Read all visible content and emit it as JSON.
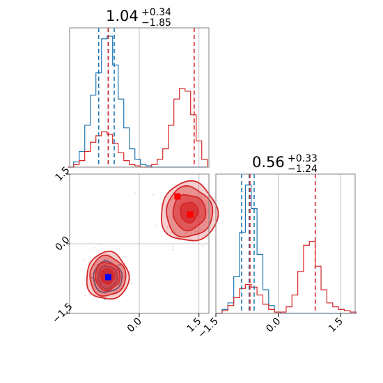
{
  "colors": {
    "blue": "#1f77b4",
    "red": "#d62728",
    "grid": "#b0b0b0",
    "axes": "#808080",
    "blue_marker": "#0000ff",
    "red_marker": "#ff0000"
  },
  "chart_data": [
    {
      "type": "histogram",
      "panel": "marginal-param-1",
      "title": {
        "value": "1.04",
        "upper": "+0.34",
        "lower": "−1.85"
      },
      "xlim": [
        -1.75,
        1.75
      ],
      "x": [
        -1.72,
        -1.58,
        -1.44,
        -1.3,
        -1.16,
        -1.02,
        -0.88,
        -0.74,
        -0.6,
        -0.46,
        -0.32,
        -0.18,
        -0.04,
        0.1,
        0.24,
        0.38,
        0.52,
        0.66,
        0.8,
        0.94,
        1.08,
        1.22,
        1.36,
        1.5,
        1.64
      ],
      "grid_x": [
        0.0,
        1.5
      ],
      "series": [
        {
          "color": "blue",
          "values": [
            0.0,
            0.04,
            0.12,
            0.32,
            0.55,
            0.72,
            0.98,
            1.0,
            0.78,
            0.52,
            0.3,
            0.14,
            0.06,
            0.02,
            0.01,
            0.0,
            0.0,
            0.0,
            0.0,
            0.0,
            0.0,
            0.0,
            0.0,
            0.0,
            0.0
          ],
          "quantile_lines": [
            -1.02,
            -0.78,
            -0.63
          ]
        },
        {
          "color": "red",
          "values": [
            0.0,
            0.02,
            0.05,
            0.12,
            0.19,
            0.24,
            0.27,
            0.25,
            0.18,
            0.11,
            0.05,
            0.02,
            0.01,
            0.0,
            0.0,
            0.02,
            0.06,
            0.14,
            0.32,
            0.52,
            0.6,
            0.58,
            0.4,
            0.2,
            0.06
          ],
          "quantile_lines": [
            -0.78,
            1.38
          ]
        }
      ]
    },
    {
      "type": "contour",
      "panel": "joint",
      "xlim": [
        -1.75,
        1.75
      ],
      "ylim": [
        -1.5,
        1.5
      ],
      "xticks": [
        "0.0",
        "1.5"
      ],
      "yticks": [
        "−1.5",
        "0.0",
        "1.5"
      ],
      "grid_x": [
        0.0,
        1.5
      ],
      "grid_y": [
        0.0,
        1.5
      ],
      "clusters": [
        {
          "color": "blue",
          "center": [
            -0.8,
            -0.72
          ],
          "rx": [
            0.12,
            0.24,
            0.36
          ],
          "ry": [
            0.13,
            0.24,
            0.33
          ]
        },
        {
          "color": "red",
          "center": [
            -0.8,
            -0.7
          ],
          "rx": [
            0.17,
            0.31,
            0.45,
            0.53
          ],
          "ry": [
            0.16,
            0.3,
            0.43,
            0.51
          ]
        },
        {
          "color": "red",
          "center": [
            1.25,
            0.68
          ],
          "rx": [
            0.22,
            0.41,
            0.58,
            0.71
          ],
          "ry": [
            0.22,
            0.38,
            0.54,
            0.64
          ]
        }
      ],
      "markers": [
        {
          "color": "blue_marker",
          "x": -0.78,
          "y": -0.72
        },
        {
          "color": "red_marker",
          "x": 0.96,
          "y": 1.02
        },
        {
          "color": "red_marker",
          "x": 1.28,
          "y": 0.63
        }
      ]
    },
    {
      "type": "histogram",
      "panel": "marginal-param-2",
      "title": {
        "value": "0.56",
        "upper": "+0.33",
        "lower": "−1.24"
      },
      "xlim": [
        -1.5,
        1.85
      ],
      "xticks": [
        "−1.5",
        "0.0",
        "1.5"
      ],
      "x": [
        -1.42,
        -1.28,
        -1.14,
        -1.0,
        -0.86,
        -0.72,
        -0.58,
        -0.44,
        -0.3,
        -0.16,
        -0.02,
        0.12,
        0.26,
        0.4,
        0.54,
        0.68,
        0.82,
        0.96,
        1.1,
        1.24,
        1.38,
        1.52,
        1.66,
        1.8
      ],
      "grid_x": [
        0.0,
        1.5
      ],
      "series": [
        {
          "color": "blue",
          "values": [
            0.0,
            0.03,
            0.08,
            0.28,
            0.62,
            0.98,
            0.8,
            0.45,
            0.18,
            0.06,
            0.01,
            0.0,
            0.0,
            0.0,
            0.0,
            0.0,
            0.0,
            0.0,
            0.0,
            0.0,
            0.0,
            0.0,
            0.0,
            0.0
          ],
          "quantile_lines": [
            -0.88,
            -0.7,
            -0.58
          ]
        },
        {
          "color": "red",
          "values": [
            0.0,
            0.02,
            0.06,
            0.12,
            0.19,
            0.22,
            0.2,
            0.14,
            0.07,
            0.03,
            0.01,
            0.01,
            0.05,
            0.14,
            0.32,
            0.52,
            0.55,
            0.36,
            0.18,
            0.08,
            0.05,
            0.03,
            0.02,
            0.01
          ],
          "quantile_lines": [
            -0.68,
            0.89
          ]
        }
      ]
    }
  ]
}
